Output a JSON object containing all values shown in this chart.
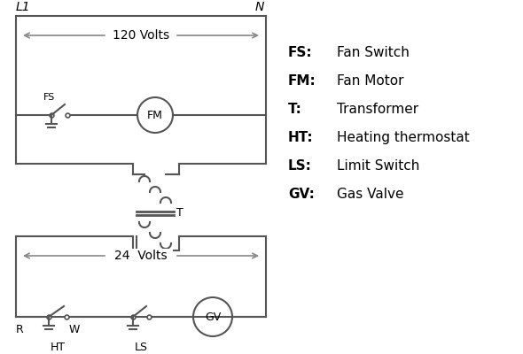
{
  "background_color": "#ffffff",
  "line_color": "#555555",
  "text_color": "#000000",
  "arrow_color": "#888888",
  "legend_items": [
    [
      "FS:",
      "Fan Switch"
    ],
    [
      "FM:",
      "Fan Motor"
    ],
    [
      "T:",
      "Transformer"
    ],
    [
      "HT:",
      "Heating thermostat"
    ],
    [
      "LS:",
      "Limit Switch"
    ],
    [
      "GV:",
      "Gas Valve"
    ]
  ]
}
